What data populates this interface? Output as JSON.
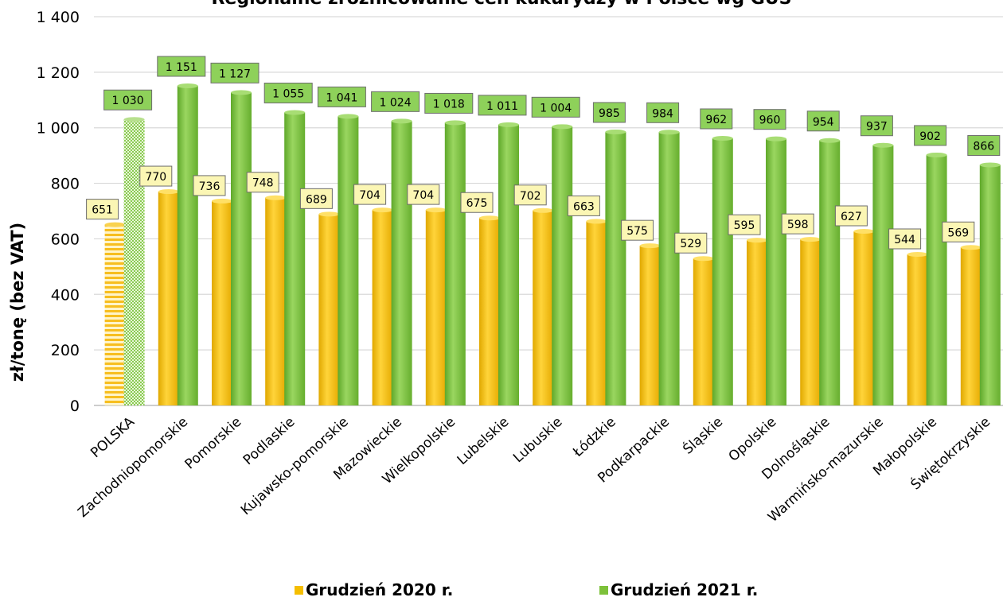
{
  "colors": {
    "series_2020": "#F5BE00",
    "series_2021": "#7DC13A",
    "label_2020_bg": "#FBF6B4",
    "label_2021_bg": "#8ED15A",
    "grid": "#D9D9D9"
  },
  "chart_data": {
    "type": "bar",
    "title": "Regionalne zróżnicowanie cen kukurydzy w Polsce wg GUS",
    "ylabel": "zł/tonę (bez VAT)",
    "xlabel": "",
    "ylim": [
      0,
      1400
    ],
    "yticks": [
      0,
      200,
      400,
      600,
      800,
      1000,
      1200,
      1400
    ],
    "ytick_labels": [
      "0",
      "200",
      "400",
      "600",
      "800",
      "1 000",
      "1 200",
      "1 400"
    ],
    "grid": true,
    "legend_position": "bottom",
    "categories": [
      "POLSKA",
      "Zachodniopomorskie",
      "Pomorskie",
      "Podlaskie",
      "Kujawsko-pomorskie",
      "Mazowieckie",
      "Wielkopolskie",
      "Lubelskie",
      "Lubuskie",
      "Łódzkie",
      "Podkarpackie",
      "Śląskie",
      "Opolskie",
      "Dolnośląskie",
      "Warmińsko-mazurskie",
      "Małopolskie",
      "Świętokrzyskie"
    ],
    "series": [
      {
        "name": "Grudzień 2020 r.",
        "values": [
          651,
          770,
          736,
          748,
          689,
          704,
          704,
          675,
          702,
          663,
          575,
          529,
          595,
          598,
          627,
          544,
          569
        ],
        "labels": [
          "651",
          "770",
          "736",
          "748",
          "689",
          "704",
          "704",
          "675",
          "702",
          "663",
          "575",
          "529",
          "595",
          "598",
          "627",
          "544",
          "569"
        ]
      },
      {
        "name": "Grudzień 2021 r.",
        "values": [
          1030,
          1151,
          1127,
          1055,
          1041,
          1024,
          1018,
          1011,
          1004,
          985,
          984,
          962,
          960,
          954,
          937,
          902,
          866
        ],
        "labels": [
          "1 030",
          "1 151",
          "1 127",
          "1 055",
          "1 041",
          "1 024",
          "1 018",
          "1 011",
          "1 004",
          "985",
          "984",
          "962",
          "960",
          "954",
          "937",
          "902",
          "866"
        ]
      }
    ]
  }
}
